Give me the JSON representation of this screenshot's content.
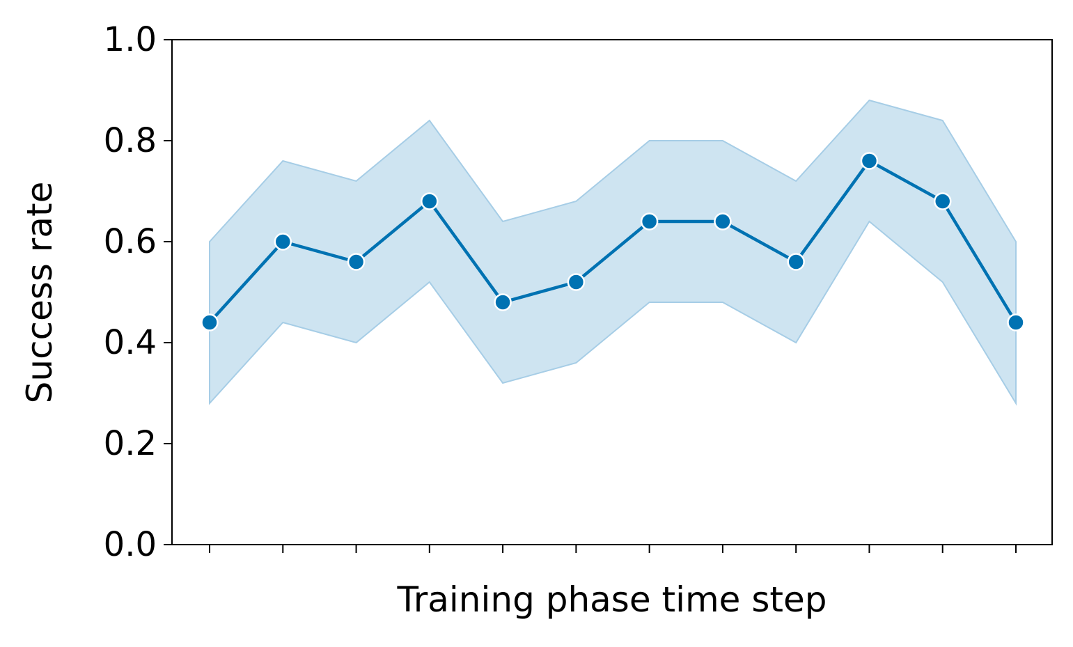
{
  "chart_data": {
    "type": "line",
    "title": "",
    "xlabel": "Training phase time step",
    "ylabel": "Success rate",
    "ylim": [
      0.0,
      1.0
    ],
    "yticks": [
      "0.0",
      "0.2",
      "0.4",
      "0.6",
      "0.8",
      "1.0"
    ],
    "x_tick_labels_visible": false,
    "grid": false,
    "legend": "none",
    "series": [
      {
        "values": [
          0.44,
          0.6,
          0.56,
          0.68,
          0.48,
          0.52,
          0.64,
          0.64,
          0.56,
          0.76,
          0.68,
          0.44
        ],
        "ci_upper": [
          0.6,
          0.76,
          0.72,
          0.84,
          0.64,
          0.68,
          0.8,
          0.8,
          0.72,
          0.88,
          0.84,
          0.6
        ],
        "ci_lower": [
          0.28,
          0.44,
          0.4,
          0.52,
          0.32,
          0.36,
          0.48,
          0.48,
          0.4,
          0.64,
          0.52,
          0.28
        ],
        "line_color": "#0072b2",
        "band_color": "#a6cde6",
        "marker": "circle"
      }
    ]
  }
}
